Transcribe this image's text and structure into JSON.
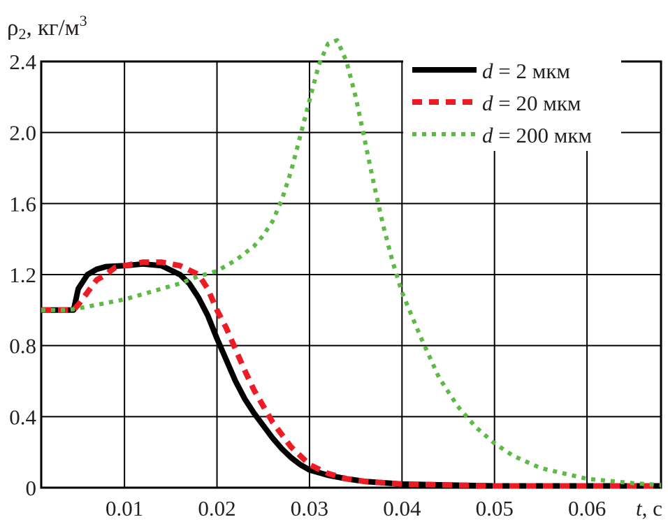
{
  "chart_data": {
    "type": "line",
    "title": "",
    "ylabel": "ρ₂, кг/м³",
    "ylabel_parts": {
      "symbol": "ρ",
      "sub": "2",
      "unit": ", кг/м",
      "sup": "3"
    },
    "xlabel": "t, с",
    "xlabel_parts": {
      "var": "t",
      "unit": ", с"
    },
    "xlim": [
      0.001,
      0.068
    ],
    "ylim": [
      0,
      2.4
    ],
    "xticks": [
      0.01,
      0.02,
      0.03,
      0.04,
      0.05,
      0.06
    ],
    "xtick_labels": [
      "0.01",
      "0.02",
      "0.03",
      "0.04",
      "0.05",
      "0.06"
    ],
    "yticks": [
      0,
      0.4,
      0.8,
      1.2,
      1.6,
      2.0,
      2.4
    ],
    "ytick_labels": [
      "0",
      "0.4",
      "0.8",
      "1.2",
      "1.6",
      "2.0",
      "2.4"
    ],
    "grid": true,
    "legend_position": "top-right",
    "series": [
      {
        "name": "d = 2 мкм",
        "label_var": "d",
        "label_rest": " = 2 мкм",
        "color": "#000000",
        "style": "solid",
        "x": [
          0.001,
          0.0045,
          0.005,
          0.006,
          0.007,
          0.008,
          0.01,
          0.012,
          0.014,
          0.016,
          0.017,
          0.018,
          0.019,
          0.02,
          0.021,
          0.022,
          0.023,
          0.024,
          0.025,
          0.026,
          0.027,
          0.028,
          0.029,
          0.03,
          0.032,
          0.034,
          0.036,
          0.04,
          0.05,
          0.068
        ],
        "y": [
          1.0,
          1.0,
          1.12,
          1.2,
          1.23,
          1.245,
          1.25,
          1.26,
          1.25,
          1.2,
          1.15,
          1.07,
          0.97,
          0.84,
          0.72,
          0.6,
          0.5,
          0.42,
          0.35,
          0.28,
          0.22,
          0.17,
          0.13,
          0.1,
          0.07,
          0.05,
          0.035,
          0.02,
          0.01,
          0.01
        ]
      },
      {
        "name": "d = 20 мкм",
        "label_var": "d",
        "label_rest": " = 20 мкм",
        "color": "#ed1c24",
        "style": "dashed",
        "x": [
          0.001,
          0.0045,
          0.005,
          0.006,
          0.007,
          0.008,
          0.009,
          0.01,
          0.012,
          0.014,
          0.016,
          0.018,
          0.019,
          0.02,
          0.021,
          0.022,
          0.023,
          0.024,
          0.025,
          0.026,
          0.027,
          0.028,
          0.029,
          0.03,
          0.032,
          0.034,
          0.036,
          0.04,
          0.05,
          0.068
        ],
        "y": [
          1.0,
          1.0,
          1.03,
          1.1,
          1.17,
          1.2,
          1.24,
          1.25,
          1.27,
          1.27,
          1.25,
          1.2,
          1.12,
          1.0,
          0.9,
          0.78,
          0.66,
          0.55,
          0.46,
          0.37,
          0.3,
          0.23,
          0.18,
          0.13,
          0.08,
          0.05,
          0.035,
          0.02,
          0.01,
          0.01
        ]
      },
      {
        "name": "d = 200 мкм",
        "label_var": "d",
        "label_rest": " = 200 мкм",
        "color": "#5dba47",
        "style": "dotted",
        "x": [
          0.001,
          0.004,
          0.006,
          0.008,
          0.01,
          0.012,
          0.014,
          0.016,
          0.018,
          0.02,
          0.022,
          0.024,
          0.025,
          0.026,
          0.027,
          0.028,
          0.029,
          0.03,
          0.031,
          0.032,
          0.033,
          0.034,
          0.035,
          0.036,
          0.037,
          0.038,
          0.039,
          0.04,
          0.042,
          0.044,
          0.046,
          0.048,
          0.05,
          0.052,
          0.055,
          0.06,
          0.065,
          0.068
        ],
        "y": [
          1.0,
          1.0,
          1.02,
          1.04,
          1.06,
          1.09,
          1.12,
          1.15,
          1.19,
          1.22,
          1.28,
          1.36,
          1.42,
          1.5,
          1.62,
          1.78,
          1.98,
          2.18,
          2.38,
          2.5,
          2.52,
          2.4,
          2.2,
          1.95,
          1.7,
          1.47,
          1.27,
          1.1,
          0.85,
          0.62,
          0.46,
          0.34,
          0.25,
          0.18,
          0.11,
          0.05,
          0.025,
          0.015
        ]
      }
    ]
  }
}
